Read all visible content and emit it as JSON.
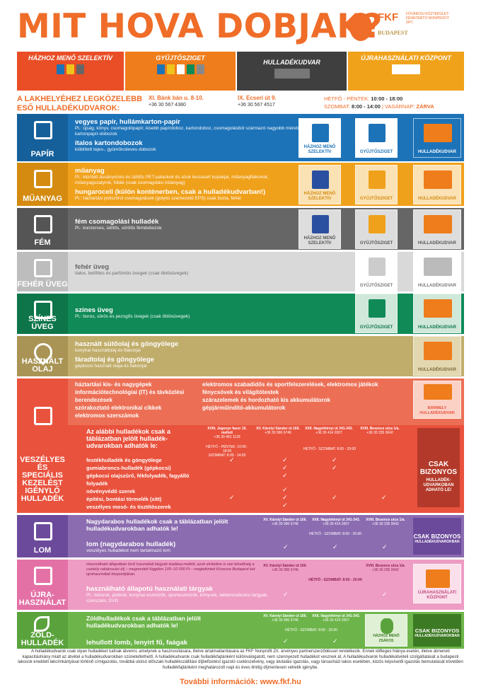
{
  "title": "MIT HOVA DOBJAK?",
  "logo": {
    "brand": "FKF",
    "sub": "FŐVÁROSI KÖZTERÜLET-FENNTARTÓ NONPROFIT ZRT.",
    "city": "BUDAPEST"
  },
  "headers": [
    "HÁZHOZ MENŐ SZELEKTÍV",
    "GYŰJTŐSZIGET",
    "HULLADÉKUDVAR",
    "ÚJRAHASZNÁLATI KÖZPONT"
  ],
  "nearest": {
    "label": "A LAKHELYÉHEZ LEGKÖZELEBB ESŐ HULLADÉKUDVAROK:",
    "a1_name": "XI. Bánk bán u. 8-10.",
    "a1_phone": "+36 30 567 4380",
    "a2_name": "IX. Ecseri út 9.",
    "a2_phone": "+36 30 567 4517",
    "s1": "HÉTFŐ - PÉNTEK:",
    "s1v": "10:00 - 18:00",
    "s2": "SZOMBAT:",
    "s2v": "8:00 - 14:00",
    "s3": "VASÁRNAP:",
    "s3v": "ZÁRVA"
  },
  "papir": {
    "label": "PAPÍR",
    "i1": "vegyes papír, hullámkarton-papír",
    "s1": "Pl.: újság, könyv, csomagolópapír, kisebb papírdoboz, kartondoboz, csomagolásból származó nagyobb méretű kartonpapír-dobozok",
    "i2": "italos kartondobozok",
    "s2": "kiöblített tejes-, gyümölcsleves dobozok"
  },
  "muanyag": {
    "label": "MŰANYAG",
    "i1": "műanyag",
    "s1": "Pl.: kiürített ásványvizes és üdítős PET-palackok és azok lecsavart kupakjai, műanyagfiakonok, műanyagszatyrok, fóliák (csak csomagolási műanyag)",
    "i2": "hungarocell (külön konténerben, csak a hulladékudvarban!)",
    "s2": "Pl.: háztartási polisztirol csomagolások (golyós szerkezetű EPS) csak tiszta, fehér"
  },
  "fem": {
    "label": "FÉM",
    "i1": "fém csomagolási hulladék",
    "s1": "Pl.: konzerves, üdítős, söröős fémdobozok"
  },
  "feher": {
    "label": "FEHÉR ÜVEG",
    "i1": "fehér üveg",
    "s1": "italos, befőttes és parfümös üvegek (csak öblösüvegek)"
  },
  "szines": {
    "label": "SZÍNES ÜVEG",
    "i1": "színes üveg",
    "s1": "Pl.: boros, sörös és pezsgős üvegek (csak öblösüvegek)"
  },
  "olaj": {
    "label": "HASZNÁLT OLAJ",
    "i1": "használt sütőolaj és göngyölege",
    "s1": "konyhai használtolaj és flakonjai",
    "i2": "fáradtolaj és göngyölege",
    "s2": "gépkocsi használt olaja és flakonjai"
  },
  "vesz": {
    "label": "VESZÉLYES ÉS SPECIÁLIS KEZELÉST IGÉNYLŐ HULLADÉK",
    "left": [
      "háztartási kis- és nagygépek",
      "információtechnológiai (IT) és távközlési berendezések",
      "szórakoztató elektronikai cikkek",
      "elektromos szerszámok"
    ],
    "right": [
      "elektromos szabadidős és sportfelszerelések, elektromos játékok",
      "fénycsövek és világítótestek",
      "szárazelemek és hordozható kis akkumulátorok",
      "gépjárműindító-akkumulátorok"
    ],
    "any": "BÁRMELY HULLADÉKUDVAR",
    "note": "Az alábbi hulladékok csak a táblázatban jelölt hulladék-udvarokban adhatók le:",
    "list": [
      "festékhulladék és göngyölege",
      "gumiabroncs-hulladék (gépkocsi)",
      "gépkocsi olajszűrő, fékfolyadék, fagyálló folyadék",
      "növényvédő szerek",
      "építési, bontási törmelék (sitt)",
      "veszélyes mosó- és tisztítószerek"
    ],
    "only": "CSAK BIZONYOS",
    "only2": "HULLADÉK-UDVARKOBAN ADHATÓ LE!",
    "h1": "XVIII. Jegenye fasor 15. mellett",
    "h1p": "+36 30 481 1129",
    "h2": "XV. Károlyi Sándor út 166.",
    "h2p": "+36 30 990 6746",
    "h3": "XXII. Nagytétényi út 341-343.",
    "h3p": "+36 30 414 2007",
    "h4": "XVIII. Besence utca 1/a.",
    "h4p": "+36 30 235 0042",
    "t1": "HÉTFŐ - PÉNTEK: 10:00 - 18:00",
    "t1b": "SZOMBAT: 8:00 - 14:00",
    "t2": "HÉTFŐ - SZOMBAT: 8:00 - 20:00"
  },
  "lom": {
    "label": "LOM",
    "note": "Nagydarabos hulladékok csak a táblázatban jelölt hulladékudvarokban adhatók le!",
    "i1": "lom (nagydarabos hulladék)",
    "s1": "veszélyes hulladékot nem tartalmazó lom",
    "only": "CSAK BIZONYOS",
    "only2": "HULLADÉKUDVAROKBAN",
    "t": "HÉTFŐ - SZOMBAT: 8:00 - 20:00"
  },
  "ujra": {
    "label": "ÚJRA-HASZNÁLAT",
    "intro": "Használható állapotban lévő használati tárgyak leadása mellett, azok elvitelére is van lehetőség a csekély raktározási díj – megrendelt függően 100–10 000 Ft – megtekintett Kövesse Budapest két újrahasználati központjában.",
    "i1": "használható állapotú használati tárgyak",
    "s1": "Pl.: bútorok, játékok, konyhai eszközök, sporteszközök, könyvek, lakberendezési tárgyak, szerszám, DVD",
    "dest": "ÚJRAHASZNÁLATI KÖZPONT"
  },
  "zold": {
    "label": "ZÖLD-HULLADÉK",
    "note": "Zöldhulladékok csak a táblázatban jelölt hulladékudvarokban adhatók le!",
    "i1": "lehullott lomb, lenyírt fű, faágak",
    "dest1": "HÁZHOZ MENŐ ZSÁKOS",
    "only": "CSAK BIZONYOS",
    "only2": "HULLADÉKUDVAROKBAN"
  },
  "dest": {
    "hmsz": "HÁZHOZ MENŐ SZELEKTÍV",
    "gy": "GYŰJTŐSZIGET",
    "hu": "HULLADÉKUDVAR"
  },
  "footer": "A hulladékudvarok csak olyan hulladéket tudnak átvenni, amelynek a hasznosítására, illetve ártalmatlanítására az FKF Nonprofit Zrt. árvényes partnerszerződéssel rendelkezik. Ennek időleges hiánya esetén, illetve átmeneti kapacitáshiány miatt az átvétel a hulladékudvarokban szüneteltethető. A hulladékudvarok csak hulladékfajtánként különválogatott, nem szennyezett hulladékot vesznek át. A hulladékudvarok hulladékátvételi szolgáltatását a budapesti lakosok ereddeti lakcímkártyával történő címigazolás, továbbá utolsó időszaki hulladékszállítási díjbefizetést igazoló csekkszelvény, vagy átutalási igazolás, vagy társasházi lakos esetében, közös képviselői igazolás bemutatását követően hulladékfajtánként meghatározott napi és éves limitig díjmentesen vehetik igénybe.",
  "more": "További információk: www.fkf.hu",
  "colors": {
    "orange": "#ef6d28",
    "papir": "#1d73b8",
    "muanyag": "#f0a11b",
    "fem": "#666666",
    "feher": "#bdbdbd",
    "szines": "#108a57",
    "olaj": "#b59e59",
    "vesz": "#e9523d",
    "lom": "#6c4a9b",
    "ujra": "#e371a6",
    "zold": "#5aa33c"
  }
}
